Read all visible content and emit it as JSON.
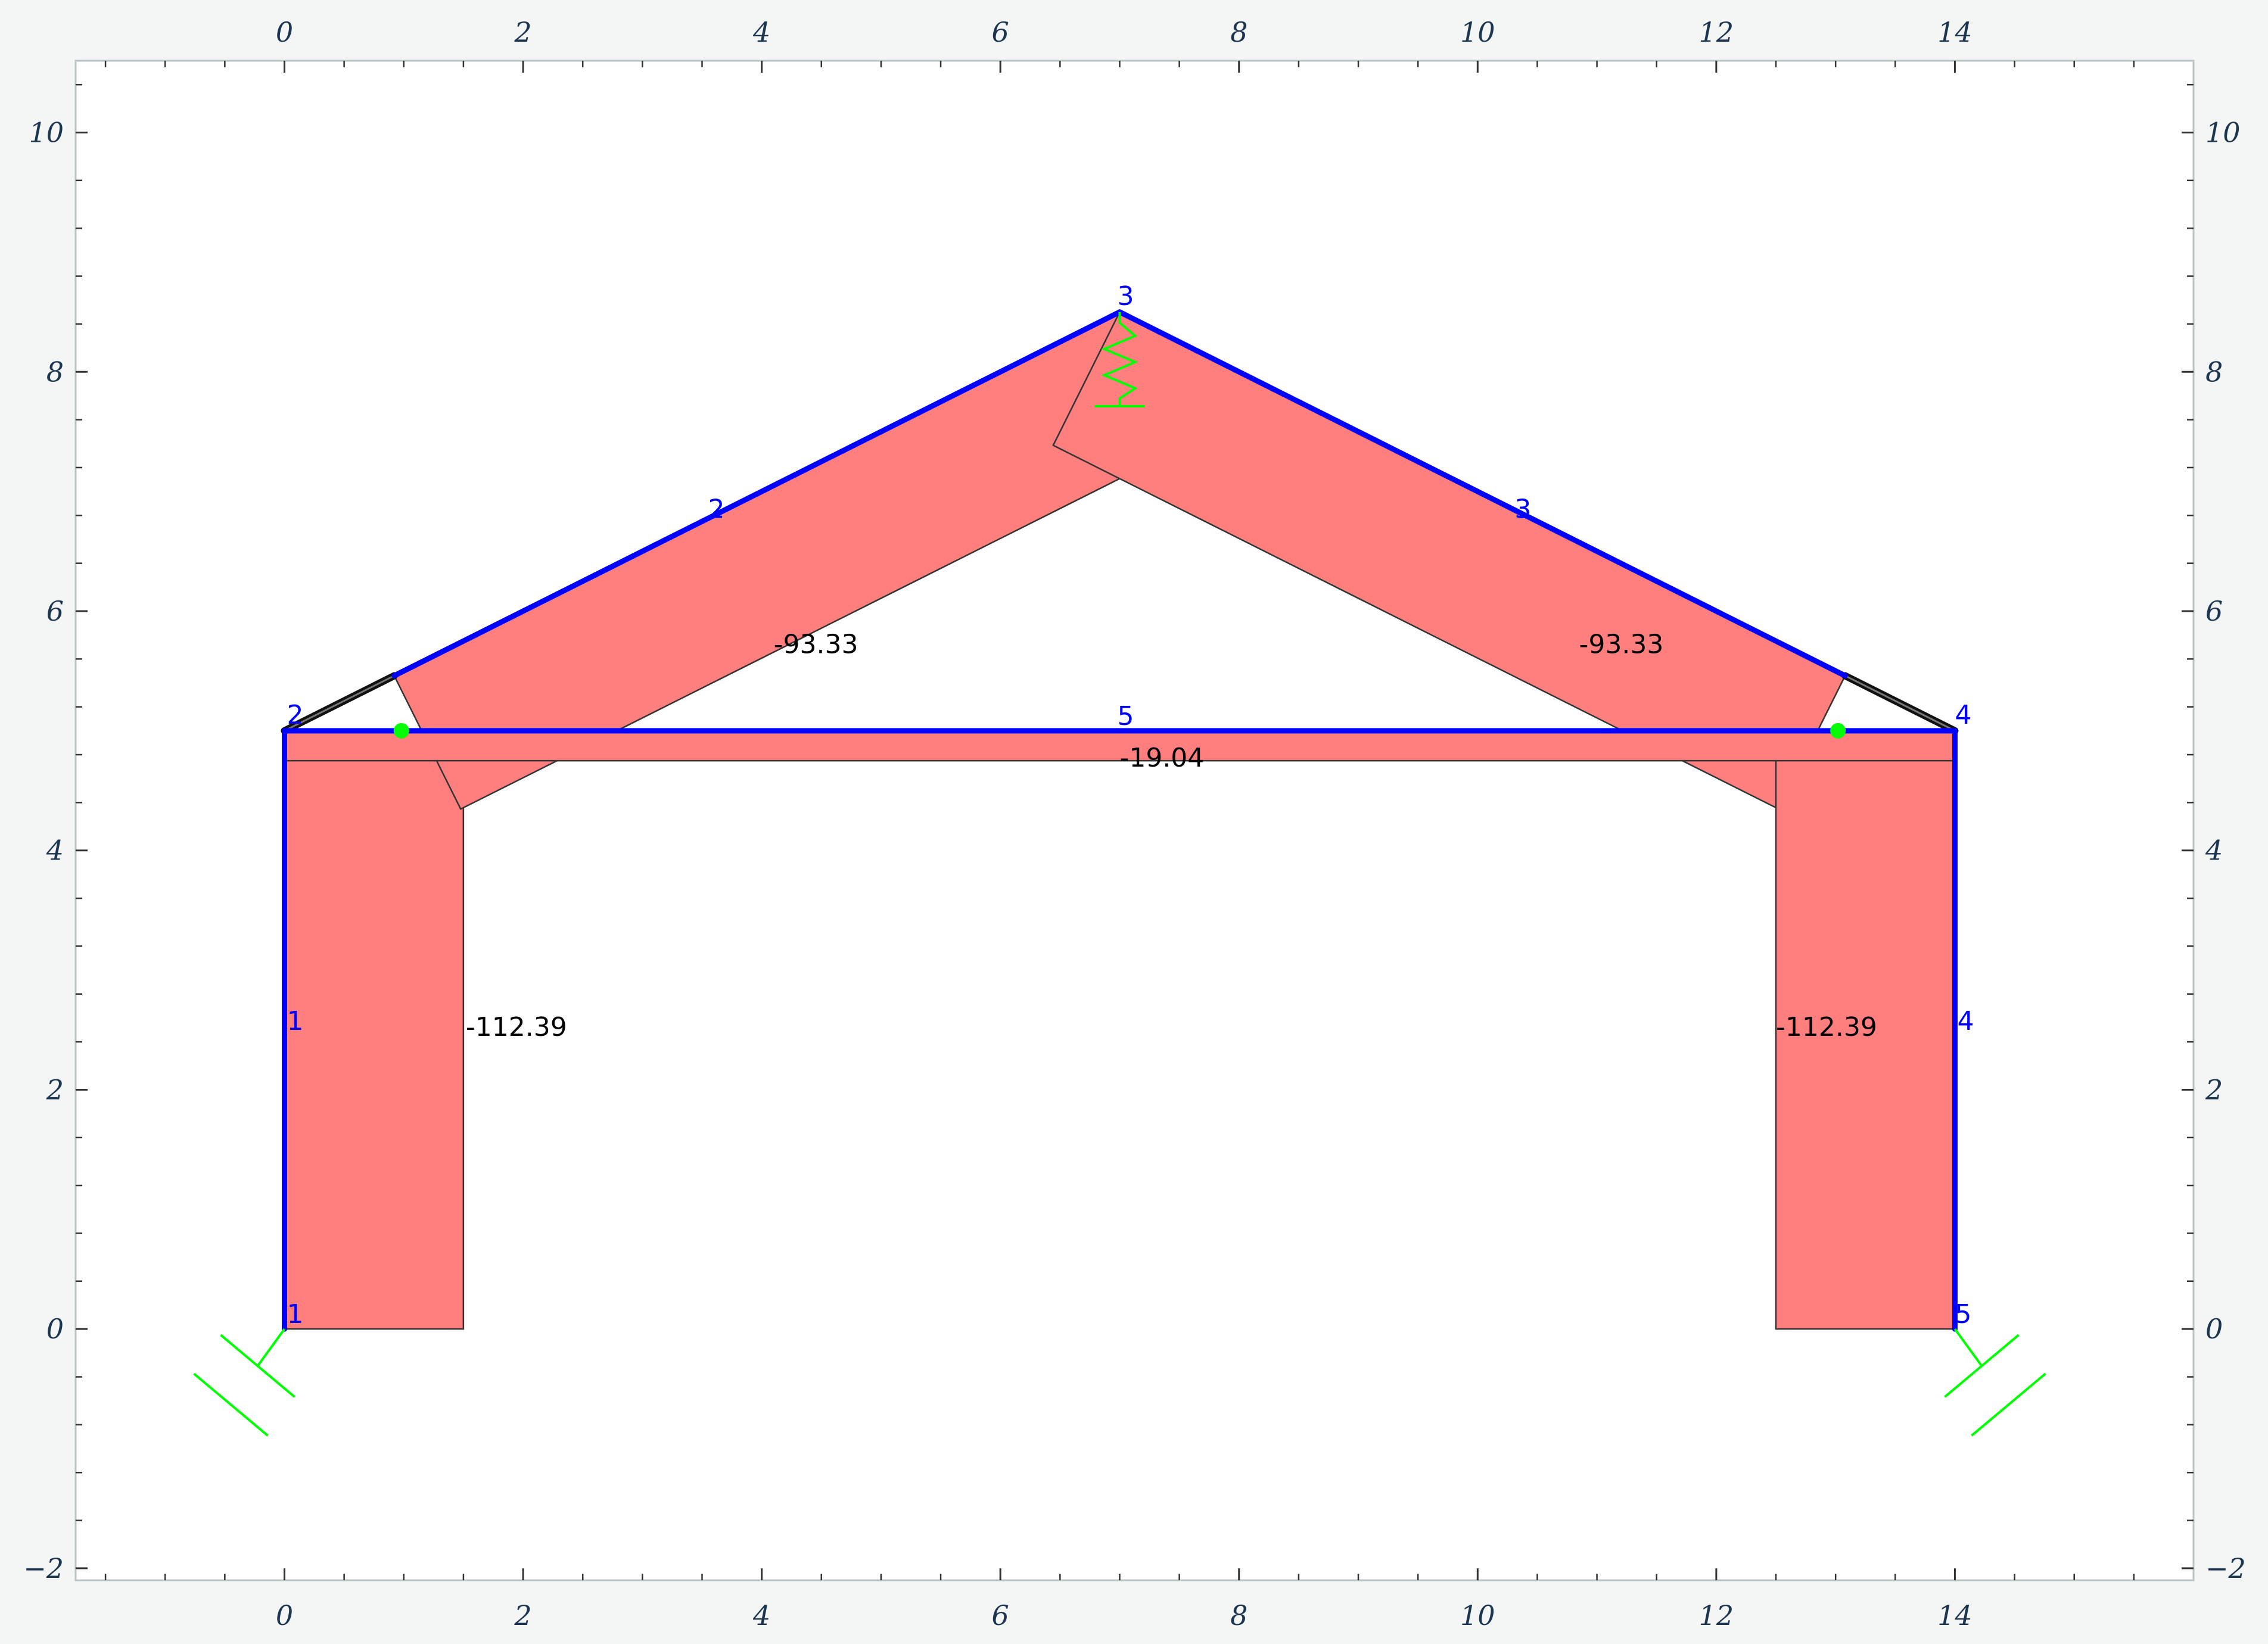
{
  "chart_data": {
    "type": "structural-frame-axial-force",
    "x_ticks": [
      "0",
      "2",
      "4",
      "6",
      "8",
      "10",
      "12",
      "14"
    ],
    "y_ticks": [
      "−2",
      "0",
      "2",
      "4",
      "6",
      "8",
      "10"
    ],
    "xlim": [
      -1.75,
      16
    ],
    "ylim": [
      -2.1,
      10.6
    ],
    "nodes": [
      {
        "label": "1",
        "x": 0,
        "y": 0
      },
      {
        "label": "2",
        "x": 0,
        "y": 5
      },
      {
        "label": "3",
        "x": 7,
        "y": 8.5
      },
      {
        "label": "4",
        "x": 14,
        "y": 5
      },
      {
        "label": "5",
        "x": 14,
        "y": 0
      }
    ],
    "elements": [
      {
        "label": "1",
        "from": [
          0,
          0
        ],
        "to": [
          0,
          5
        ],
        "value_label": "-112.39",
        "value": -112.39
      },
      {
        "label": "2",
        "from": [
          0.92,
          5.46
        ],
        "to": [
          7,
          8.5
        ],
        "value_label": "-93.33",
        "value": -93.33
      },
      {
        "label": "3",
        "from": [
          7,
          8.5
        ],
        "to": [
          13.08,
          5.46
        ],
        "value_label": "-93.33",
        "value": -93.33
      },
      {
        "label": "4",
        "from": [
          14,
          5
        ],
        "to": [
          14,
          0
        ],
        "value_label": "-112.39",
        "value": -112.39
      },
      {
        "label": "5",
        "from": [
          0,
          5
        ],
        "to": [
          14,
          5
        ],
        "value_label": "-19.04",
        "value": -19.04
      }
    ],
    "rigid_links": [
      {
        "from": [
          0,
          5
        ],
        "to": [
          0.92,
          5.46
        ]
      },
      {
        "from": [
          13.08,
          5.46
        ],
        "to": [
          14,
          5
        ]
      }
    ],
    "hinges": [
      [
        0.98,
        5
      ],
      [
        13.02,
        5
      ]
    ],
    "supports": [
      {
        "type": "inclined-roller",
        "node": "1",
        "side": "left"
      },
      {
        "type": "inclined-roller",
        "node": "5",
        "side": "right"
      },
      {
        "type": "spring",
        "node": "3"
      }
    ],
    "colors": {
      "member": "#0000ff",
      "fill": "#ff7f7f",
      "support": "#00ff00",
      "link": "#111111",
      "axes": "#b9c4c4"
    }
  }
}
